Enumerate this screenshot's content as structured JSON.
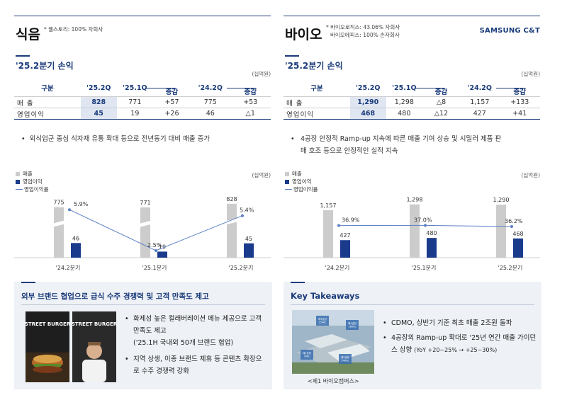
{
  "left": {
    "title": "식음",
    "note": "* 웰스토리: 100% 자회사",
    "pl_title": "'25.2분기 손익",
    "unit": "(십억원)",
    "table": {
      "headers": [
        "구분",
        "'25.2Q",
        "'25.1Q",
        "증감",
        "'24.2Q",
        "증감"
      ],
      "rows": [
        {
          "label": "매 출",
          "cells": [
            "828",
            "771",
            "+57",
            "775",
            "+53"
          ]
        },
        {
          "label": "영업이익",
          "cells": [
            "45",
            "19",
            "+26",
            "46",
            "△1"
          ]
        }
      ]
    },
    "bullet": "외식업군 중심 식자재 유통 확대 등으로 전년동기 대비 매출 증가",
    "legend": [
      "매출",
      "영업이익",
      "영업이익률"
    ],
    "chart_unit": "(십억원)",
    "chart_data": {
      "type": "bar",
      "categories": [
        "'24.2분기",
        "'25.1분기",
        "'25.2분기"
      ],
      "series": [
        {
          "name": "매출",
          "values": [
            775,
            771,
            828
          ]
        },
        {
          "name": "영업이익",
          "values": [
            46,
            19,
            45
          ]
        },
        {
          "name": "영업이익률",
          "values": [
            5.9,
            2.5,
            5.4
          ]
        }
      ],
      "value_labels": {
        "sales": [
          "775",
          "771",
          "828"
        ],
        "op": [
          "46",
          "19",
          "45"
        ],
        "margin": [
          "5.9%",
          "2.5%",
          "5.4%"
        ]
      },
      "colors": {
        "sales": "#cccccc",
        "op": "#1a3b8c",
        "margin": "#5a7fc4"
      }
    },
    "box": {
      "title": "외부 브랜드 협업으로 급식 수주 경쟁력 및 고객 만족도 제고",
      "poster_text_1": "STREET BURGER",
      "poster_text_2": "STREET BURGER",
      "bullets": [
        "화제성 높은 컬래버레이션 메뉴 제공으로 고객 만족도 제고",
        "('25.1H 국내외 50개 브랜드 협업)",
        "지역 상생, 이종 브랜드 제휴 등 콘텐츠 확장으로 수주 경쟁력 강화"
      ]
    }
  },
  "right": {
    "title": "바이오",
    "note_1": "* 바이오로직스: 43.06% 자회사",
    "note_2": "바이오에피스: 100% 손자회사",
    "brand": "SAMSUNG C&T",
    "pl_title": "'25.2분기 손익",
    "unit": "(십억원)",
    "table": {
      "headers": [
        "구분",
        "'25.2Q",
        "'25.1Q",
        "증감",
        "'24.2Q",
        "증감"
      ],
      "rows": [
        {
          "label": "매 출",
          "cells": [
            "1,290",
            "1,298",
            "△8",
            "1,157",
            "+133"
          ]
        },
        {
          "label": "영업이익",
          "cells": [
            "468",
            "480",
            "△12",
            "427",
            "+41"
          ]
        }
      ]
    },
    "bullet": "4공장 안정적 Ramp-up 지속에 따른 매출 기여 상승 및 시밀러 제품 판매 호조 등으로 안정적인 실적 지속",
    "legend": [
      "매출",
      "영업이익",
      "영업이익률"
    ],
    "chart_unit": "(십억원)",
    "chart_data": {
      "type": "bar",
      "categories": [
        "'24.2분기",
        "'25.1분기",
        "'25.2분기"
      ],
      "series": [
        {
          "name": "매출",
          "values": [
            1157,
            1298,
            1290
          ]
        },
        {
          "name": "영업이익",
          "values": [
            427,
            480,
            468
          ]
        },
        {
          "name": "영업이익률",
          "values": [
            36.9,
            37.0,
            36.2
          ]
        }
      ],
      "value_labels": {
        "sales": [
          "1,157",
          "1,298",
          "1,290"
        ],
        "op": [
          "427",
          "480",
          "468"
        ],
        "margin": [
          "36.9%",
          "37.0%",
          "36.2%"
        ]
      },
      "colors": {
        "sales": "#cccccc",
        "op": "#1a3b8c",
        "margin": "#5a7fc4"
      }
    },
    "box": {
      "title": "Key Takeaways",
      "map_labels": [
        "제3공장\n154KL",
        "제4공장\n180KL",
        "제1공장\n30KL",
        "제2공장\n240KL"
      ],
      "caption": "<제1 바이오캠퍼스>",
      "bullet_1": "CDMO, 상반기 기준 최초 매출 2조원 돌파",
      "bullet_2": "4공장의 Ramp-up 확대로 '25년 연간 매출 가이던스 상향",
      "bullet_2_small": "(YoY +20~25% → +25~30%)"
    }
  }
}
